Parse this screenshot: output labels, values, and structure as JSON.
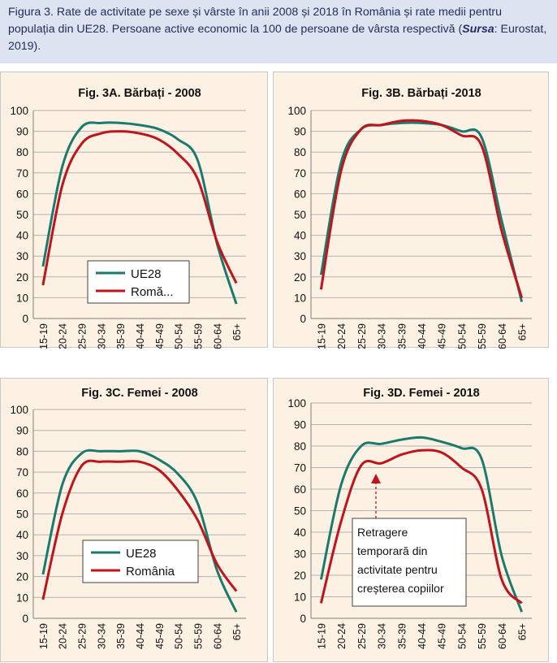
{
  "caption": {
    "text": "Figura 3. Rate de activitate pe sexe și vârste în anii 2008 și 2018 în România și rate medii pentru populația din UE28. Persoane active economic la 100 de persoane de vârsta respectivă (",
    "source_label": "Sursa",
    "source_text": ": Eurostat, 2019)."
  },
  "colors": {
    "ue28": "#1a7a6e",
    "romania": "#c0141c",
    "grid": "#b3b3b3",
    "panel_bg": "#fdf1e3",
    "text": "#111111"
  },
  "chart_data": [
    {
      "type": "line",
      "title": "Fig. 3A. Bărbați - 2008",
      "categories": [
        "15-19",
        "20-24",
        "25-29",
        "30-34",
        "35-39",
        "40-44",
        "45-49",
        "50-54",
        "55-59",
        "60-64",
        "65+"
      ],
      "ylim": [
        0,
        100
      ],
      "yticks": [
        0,
        10,
        20,
        30,
        40,
        50,
        60,
        70,
        80,
        90,
        100
      ],
      "grid": true,
      "legend": {
        "placement": "bottom-left",
        "entries": [
          "UE28",
          "Romă..."
        ]
      },
      "series": [
        {
          "name": "UE28",
          "values": [
            25,
            73,
            92,
            94,
            94,
            93,
            91,
            86,
            76,
            36,
            7
          ]
        },
        {
          "name": "Romă...",
          "values": [
            16,
            64,
            84,
            89,
            90,
            89,
            86,
            79,
            67,
            37,
            17
          ]
        }
      ]
    },
    {
      "type": "line",
      "title": "Fig. 3B. Bărbați -2018",
      "categories": [
        "15-19",
        "20-24",
        "25-29",
        "30-34",
        "35-39",
        "40-44",
        "45-49",
        "50-54",
        "55-59",
        "60-64",
        "65+"
      ],
      "ylim": [
        0,
        100
      ],
      "yticks": [
        0,
        10,
        20,
        30,
        40,
        50,
        60,
        70,
        80,
        90,
        100
      ],
      "grid": true,
      "legend": null,
      "series": [
        {
          "name": "UE28",
          "values": [
            21,
            75,
            91,
            93,
            94,
            94,
            93,
            90,
            87,
            47,
            8
          ]
        },
        {
          "name": "România",
          "values": [
            14,
            71,
            91,
            93,
            95,
            95,
            93,
            88,
            83,
            42,
            10
          ]
        }
      ]
    },
    {
      "type": "line",
      "title": "Fig. 3C. Femei - 2008",
      "categories": [
        "15-19",
        "20-24",
        "25-29",
        "30-34",
        "35-39",
        "40-44",
        "45-49",
        "50-54",
        "55-59",
        "60-64",
        "65+"
      ],
      "ylim": [
        0,
        100
      ],
      "yticks": [
        0,
        10,
        20,
        30,
        40,
        50,
        60,
        70,
        80,
        90,
        100
      ],
      "grid": true,
      "legend": {
        "placement": "bottom-left",
        "entries": [
          "UE28",
          "România"
        ]
      },
      "series": [
        {
          "name": "UE28",
          "values": [
            21,
            64,
            79,
            80,
            80,
            80,
            76,
            69,
            55,
            23,
            3
          ]
        },
        {
          "name": "România",
          "values": [
            9,
            50,
            73,
            75,
            75,
            75,
            71,
            61,
            47,
            26,
            13
          ]
        }
      ]
    },
    {
      "type": "line",
      "title": "Fig. 3D. Femei  - 2018",
      "categories": [
        "15-19",
        "20-24",
        "25-29",
        "30-34",
        "35-39",
        "40-44",
        "45-49",
        "50-54",
        "55-59",
        "60-64",
        "65+"
      ],
      "ylim": [
        0,
        100
      ],
      "yticks": [
        0,
        10,
        20,
        30,
        40,
        50,
        60,
        70,
        80,
        90,
        100
      ],
      "grid": true,
      "legend": null,
      "annotation": {
        "lines": [
          "Retragere",
          "temporară din",
          "activitate pentru",
          "creșterea copiilor"
        ]
      },
      "series": [
        {
          "name": "UE28",
          "values": [
            18,
            62,
            80,
            81,
            83,
            84,
            82,
            79,
            74,
            29,
            3
          ]
        },
        {
          "name": "România",
          "values": [
            7,
            45,
            71,
            72,
            76,
            78,
            77,
            70,
            60,
            18,
            7
          ]
        }
      ]
    }
  ]
}
